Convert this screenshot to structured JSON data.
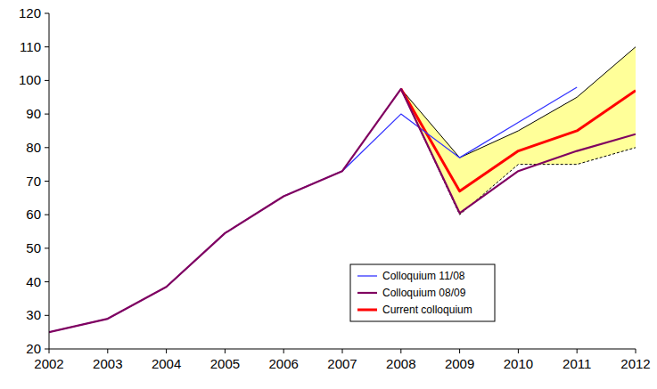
{
  "chart_data": {
    "type": "line",
    "x": [
      2002,
      2003,
      2004,
      2005,
      2006,
      2007,
      2008,
      2009,
      2010,
      2011,
      2012
    ],
    "xlim": [
      2002,
      2012
    ],
    "xticks": [
      2002,
      2003,
      2004,
      2005,
      2006,
      2007,
      2008,
      2009,
      2010,
      2011,
      2012
    ],
    "ylim": [
      20,
      120
    ],
    "yticks": [
      20,
      30,
      40,
      50,
      60,
      70,
      80,
      90,
      100,
      110,
      120
    ],
    "grid": false,
    "legend": "bottom",
    "band": {
      "low": [
        null,
        null,
        null,
        null,
        null,
        null,
        97.5,
        60,
        75,
        75,
        80
      ],
      "high": [
        null,
        null,
        null,
        null,
        null,
        null,
        97.5,
        77,
        85,
        95,
        110
      ],
      "color": "#ffff99"
    },
    "series": [
      {
        "name": "Colloquium 11/08",
        "color": "#3333ff",
        "line_style": "solid",
        "values": [
          25,
          29,
          38.5,
          54.5,
          65.5,
          73,
          90,
          77,
          87.5,
          98,
          null
        ]
      },
      {
        "name": "Colloquium 08/09",
        "color": "#800060",
        "line_style": "solid",
        "values": [
          25,
          29,
          38.5,
          54.5,
          65.5,
          73,
          97.5,
          60.5,
          73,
          79,
          84
        ]
      },
      {
        "name": "Current colloquium",
        "color": "#ff0000",
        "line_style": "solid",
        "values": [
          null,
          null,
          null,
          null,
          null,
          null,
          97.5,
          67,
          79,
          85,
          97
        ]
      }
    ]
  }
}
